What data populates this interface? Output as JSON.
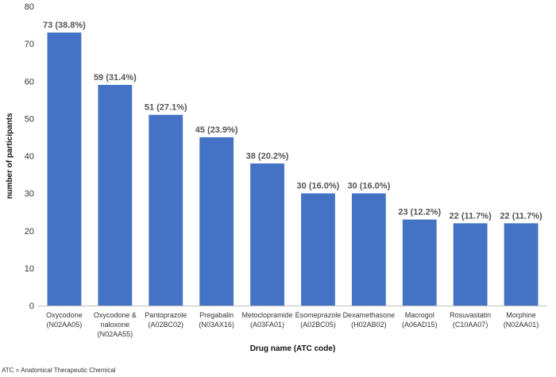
{
  "chart_data": {
    "type": "bar",
    "title": "",
    "xlabel": "Drug name (ATC code)",
    "ylabel": "number of participants",
    "ylim": [
      0,
      80
    ],
    "yticks": [
      0,
      10,
      20,
      30,
      40,
      50,
      60,
      70,
      80
    ],
    "grid": false,
    "bar_color": "#4472C4",
    "categories": [
      [
        "Oxycodone",
        "(N02AA05)"
      ],
      [
        "Oxycodone &",
        "naloxone",
        "(N02AA55)"
      ],
      [
        "Pantoprazole",
        "(A02BC02)"
      ],
      [
        "Pregabalin",
        "(N03AX16)"
      ],
      [
        "Metoclopramide",
        "(A03FA01)"
      ],
      [
        "Esomeprazole",
        "(A02BC05)"
      ],
      [
        "Dexamethasone",
        "(H02AB02)"
      ],
      [
        "Macrogol",
        "(A06AD15)"
      ],
      [
        "Rosuvastatin",
        "(C10AA07)"
      ],
      [
        "Morphine",
        "(N02AA01)"
      ]
    ],
    "values": [
      73,
      59,
      51,
      45,
      38,
      30,
      30,
      23,
      22,
      22
    ],
    "data_labels": [
      "73 (38.8%)",
      "59 (31.4%)",
      "51 (27.1%)",
      "45 (23.9%)",
      "38 (20.2%)",
      "30 (16.0%)",
      "30 (16.0%)",
      "23 (12.2%)",
      "22 (11.7%)",
      "22 (11.7%)"
    ]
  },
  "footnote": "ATC = Anatomical Therapeutic Chemical"
}
